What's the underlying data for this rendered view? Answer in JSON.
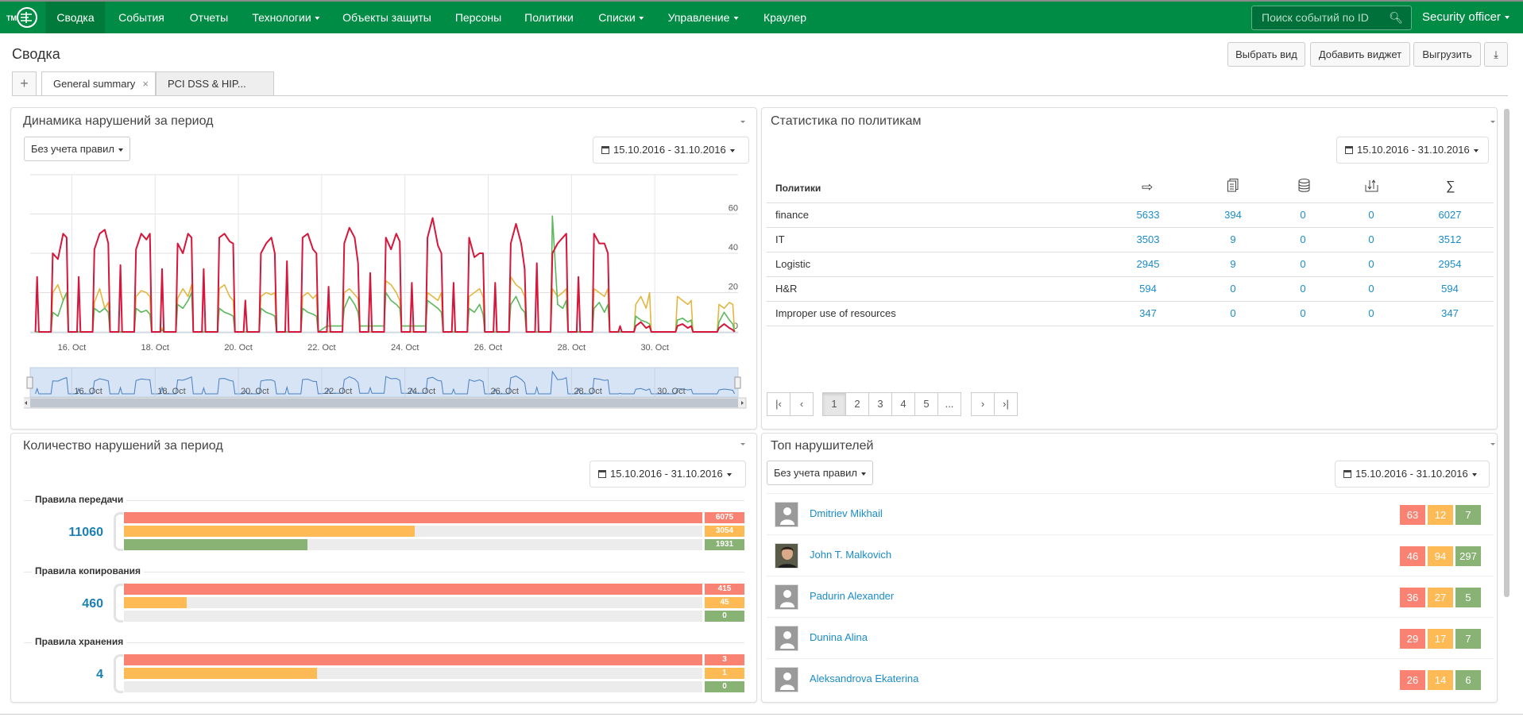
{
  "nav": {
    "logo_text": "ТМ",
    "items": [
      {
        "label": "Сводка",
        "active": true
      },
      {
        "label": "События"
      },
      {
        "label": "Отчеты"
      },
      {
        "label": "Технологии",
        "dropdown": true
      },
      {
        "label": "Объекты защиты"
      },
      {
        "label": "Персоны"
      },
      {
        "label": "Политики"
      },
      {
        "label": "Списки",
        "dropdown": true
      },
      {
        "label": "Управление",
        "dropdown": true
      },
      {
        "label": "Краулер"
      }
    ],
    "search_placeholder": "Поиск событий по ID",
    "user": "Security officer",
    "brand_color": "#008c45"
  },
  "page": {
    "title": "Сводка",
    "buttons": {
      "choose_view": "Выбрать вид",
      "add_widget": "Добавить виджет",
      "export": "Выгрузить"
    },
    "tabs": [
      {
        "label": "General summary",
        "active": true
      },
      {
        "label": "PCI DSS & HIP..."
      }
    ]
  },
  "dynamics": {
    "title": "Динамика нарушений за период",
    "rules_select": "Без учета правил",
    "date_range": "15.10.2016 - 31.10.2016"
  },
  "chart_data": {
    "type": "line",
    "title": "",
    "xlabel": "",
    "ylabel": "",
    "x_range": [
      "2016-10-15 00:00",
      "2016-11-01 00:00"
    ],
    "ylim": [
      0,
      80
    ],
    "y_ticks": [
      0,
      20,
      40,
      60
    ],
    "x_tick_labels": [
      "16. Oct",
      "18. Oct",
      "20. Oct",
      "22. Oct",
      "24. Oct",
      "26. Oct",
      "28. Oct",
      "30. Oct"
    ],
    "grid": true,
    "legend": "none",
    "navigator": true,
    "hours": [
      3,
      4,
      5,
      12,
      13,
      16,
      19,
      21,
      22
    ],
    "days": [
      "2016-10-15",
      "2016-10-16",
      "2016-10-17",
      "2016-10-18",
      "2016-10-19",
      "2016-10-20",
      "2016-10-21",
      "2016-10-22",
      "2016-10-23",
      "2016-10-24",
      "2016-10-25",
      "2016-10-26",
      "2016-10-27",
      "2016-10-28",
      "2016-10-29",
      "2016-10-30",
      "2016-10-31"
    ],
    "series": [
      {
        "color": "#e3b640",
        "values": [
          [
            0,
            0,
            0,
            0,
            20,
            24,
            16,
            20,
            0
          ],
          [
            0,
            0,
            0,
            0,
            15,
            22,
            12,
            15,
            0
          ],
          [
            0,
            0,
            0,
            0,
            18,
            21,
            20,
            18,
            0
          ],
          [
            0,
            2,
            0,
            0,
            17,
            22,
            18,
            24,
            0
          ],
          [
            0,
            0,
            0,
            0,
            22,
            24,
            18,
            16,
            0
          ],
          [
            0,
            0,
            0,
            0,
            18,
            20,
            19,
            20,
            0
          ],
          [
            0,
            0,
            0,
            0,
            18,
            20,
            17,
            19,
            0
          ],
          [
            0,
            0,
            0,
            0,
            20,
            22,
            19,
            17,
            0
          ],
          [
            0,
            0,
            0,
            0,
            26,
            24,
            20,
            16,
            0
          ],
          [
            0,
            0,
            0,
            0,
            20,
            18,
            16,
            20,
            0
          ],
          [
            0,
            0,
            0,
            0,
            18,
            20,
            22,
            18,
            0
          ],
          [
            0,
            0,
            0,
            0,
            28,
            24,
            22,
            18,
            0
          ],
          [
            0,
            0,
            0,
            0,
            22,
            18,
            20,
            22,
            0
          ],
          [
            0,
            0,
            0,
            0,
            22,
            20,
            18,
            22,
            0
          ],
          [
            0,
            0,
            0,
            0,
            14,
            18,
            12,
            20,
            0
          ],
          [
            0,
            0,
            0,
            0,
            18,
            16,
            14,
            16,
            0
          ],
          [
            0,
            0,
            0,
            0,
            14,
            12,
            15,
            14,
            0
          ]
        ]
      },
      {
        "color": "#5cb85c",
        "values": [
          [
            0,
            0,
            0,
            0,
            10,
            8,
            16,
            20,
            0
          ],
          [
            0,
            0,
            0,
            0,
            12,
            10,
            12,
            10,
            0
          ],
          [
            0,
            0,
            0,
            0,
            12,
            10,
            11,
            9,
            0
          ],
          [
            0,
            1,
            0,
            0,
            14,
            12,
            16,
            20,
            0
          ],
          [
            0,
            0,
            0,
            0,
            12,
            10,
            9,
            8,
            0
          ],
          [
            0,
            0,
            0,
            0,
            12,
            10,
            9,
            8,
            0
          ],
          [
            0,
            0,
            0,
            0,
            12,
            10,
            9,
            8,
            0
          ],
          [
            3,
            3,
            3,
            3,
            12,
            18,
            14,
            10,
            3
          ],
          [
            3,
            3,
            3,
            3,
            20,
            16,
            14,
            12,
            3
          ],
          [
            3,
            3,
            3,
            3,
            16,
            14,
            12,
            10,
            0
          ],
          [
            0,
            0,
            0,
            0,
            12,
            10,
            14,
            9,
            0
          ],
          [
            0,
            0,
            0,
            0,
            14,
            18,
            12,
            10,
            0
          ],
          [
            0,
            0,
            0,
            0,
            59,
            14,
            12,
            16,
            0
          ],
          [
            0,
            0,
            0,
            0,
            12,
            15,
            10,
            14,
            0
          ],
          [
            0,
            0,
            0,
            0,
            8,
            6,
            5,
            4,
            0
          ],
          [
            0,
            0,
            0,
            0,
            6,
            7,
            5,
            6,
            0
          ],
          [
            0,
            0,
            0,
            0,
            5,
            10,
            6,
            4,
            0
          ]
        ]
      },
      {
        "color": "#d6163a",
        "values": [
          [
            0,
            28,
            0,
            0,
            40,
            37,
            50,
            48,
            0
          ],
          [
            0,
            28,
            0,
            0,
            42,
            50,
            52,
            45,
            0
          ],
          [
            0,
            34,
            0,
            0,
            42,
            50,
            47,
            50,
            0
          ],
          [
            0,
            32,
            0,
            0,
            45,
            40,
            50,
            48,
            0
          ],
          [
            0,
            32,
            0,
            0,
            48,
            50,
            46,
            45,
            0
          ],
          [
            0,
            16,
            0,
            0,
            40,
            45,
            48,
            40,
            0
          ],
          [
            0,
            36,
            0,
            0,
            48,
            50,
            42,
            40,
            0
          ],
          [
            0,
            23,
            0,
            0,
            45,
            53,
            48,
            35,
            0
          ],
          [
            0,
            30,
            0,
            0,
            48,
            42,
            50,
            46,
            0
          ],
          [
            0,
            25,
            0,
            0,
            48,
            58,
            44,
            40,
            0
          ],
          [
            0,
            25,
            0,
            0,
            48,
            38,
            40,
            40,
            0
          ],
          [
            0,
            25,
            0,
            0,
            45,
            55,
            45,
            32,
            0
          ],
          [
            0,
            35,
            0,
            0,
            40,
            45,
            48,
            50,
            0
          ],
          [
            0,
            28,
            0,
            0,
            50,
            45,
            45,
            40,
            0
          ],
          [
            0,
            3,
            0,
            0,
            3,
            5,
            2,
            3,
            0
          ],
          [
            0,
            0,
            0,
            0,
            3,
            4,
            2,
            3,
            0
          ],
          [
            0,
            0,
            0,
            0,
            2,
            4,
            2,
            1,
            0
          ]
        ]
      }
    ]
  },
  "policies": {
    "title": "Статистика по политикам",
    "date_range": "15.10.2016 - 31.10.2016",
    "header": "Политики",
    "column_icons": [
      "transfer-arrow-icon",
      "copy-icon",
      "storage-icon",
      "upload-icon",
      "sum-icon"
    ],
    "sum_symbol": "∑",
    "rows": [
      {
        "name": "finance",
        "values": [
          "5633",
          "394",
          "0",
          "0",
          "6027"
        ]
      },
      {
        "name": "IT",
        "values": [
          "3503",
          "9",
          "0",
          "0",
          "3512"
        ]
      },
      {
        "name": "Logistic",
        "values": [
          "2945",
          "9",
          "0",
          "0",
          "2954"
        ]
      },
      {
        "name": "H&R",
        "values": [
          "594",
          "0",
          "0",
          "0",
          "594"
        ]
      },
      {
        "name": "Improper use of resources",
        "values": [
          "347",
          "0",
          "0",
          "0",
          "347"
        ]
      }
    ],
    "pagination": {
      "pages": [
        "1",
        "2",
        "3",
        "4",
        "5",
        "..."
      ],
      "current": "1"
    }
  },
  "counts": {
    "title": "Количество нарушений за период",
    "date_range": "15.10.2016 - 31.10.2016",
    "colors": {
      "high": "#f98272",
      "medium": "#febb55",
      "low": "#88b374"
    },
    "groups": [
      {
        "title": "Правила передачи",
        "total": "11060",
        "values": [
          6075,
          3054,
          1931
        ]
      },
      {
        "title": "Правила копирования",
        "total": "460",
        "values": [
          415,
          45,
          0
        ]
      },
      {
        "title": "Правила хранения",
        "total": "4",
        "values": [
          3,
          1,
          0
        ]
      }
    ]
  },
  "top": {
    "title": "Топ нарушителей",
    "rules_select": "Без учета правил",
    "date_range": "15.10.2016 - 31.10.2016",
    "people": [
      {
        "name": "Dmitriev Mikhail",
        "photo": false,
        "counts": [
          "63",
          "12",
          "7"
        ]
      },
      {
        "name": "John T. Malkovich",
        "photo": true,
        "counts": [
          "46",
          "94",
          "297"
        ]
      },
      {
        "name": "Padurin Alexander",
        "photo": false,
        "counts": [
          "36",
          "27",
          "5"
        ]
      },
      {
        "name": "Dunina Alina",
        "photo": false,
        "counts": [
          "29",
          "17",
          "7"
        ]
      },
      {
        "name": "Aleksandrova Ekaterina",
        "photo": false,
        "counts": [
          "26",
          "14",
          "6"
        ]
      }
    ]
  }
}
